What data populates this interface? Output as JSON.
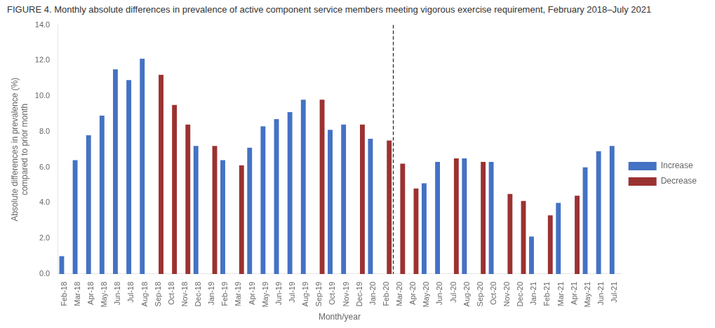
{
  "chart_data": {
    "type": "bar",
    "title": "FIGURE 4. Monthly absolute differences in prevalence of active component service members meeting vigorous exercise requirement, February 2018–July 2021",
    "xlabel": "Month/year",
    "ylabel": "Absolute differences in prevalence (%)\ncompared to prior month",
    "categories": [
      "Feb-18",
      "Mar-18",
      "Apr-18",
      "May-18",
      "Jun-18",
      "Jul-18",
      "Aug-18",
      "Sep-18",
      "Oct-18",
      "Nov-18",
      "Dec-18",
      "Jan-19",
      "Feb-19",
      "Mar-19",
      "Apr-19",
      "May-19",
      "Jun-19",
      "Jul-19",
      "Aug-19",
      "Sep-19",
      "Oct-19",
      "Nov-19",
      "Dec-19",
      "Jan-20",
      "Feb-20",
      "Mar-20",
      "Apr-20",
      "May-20",
      "Jun-20",
      "Jul-20",
      "Aug-20",
      "Sep-20",
      "Oct-20",
      "Nov-20",
      "Dec-20",
      "Jan-21",
      "Feb-21",
      "Mar-21",
      "Apr-21",
      "May-21",
      "Jun-21",
      "Jul-21"
    ],
    "series": [
      {
        "name": "Increase",
        "color": "#4472C4",
        "values": [
          1.0,
          6.4,
          7.8,
          8.9,
          11.5,
          10.9,
          12.1,
          0,
          0,
          0,
          7.2,
          0,
          6.4,
          0,
          7.1,
          8.3,
          8.7,
          9.1,
          9.8,
          0,
          8.1,
          8.4,
          0,
          7.6,
          0,
          0,
          0,
          5.1,
          6.3,
          0,
          6.5,
          0,
          6.3,
          0,
          0,
          2.1,
          0,
          4.0,
          0,
          6.0,
          6.9,
          7.2
        ]
      },
      {
        "name": "Decrease",
        "color": "#9B3232",
        "values": [
          0,
          0,
          0,
          0,
          0,
          0,
          0,
          11.2,
          9.5,
          8.4,
          0,
          7.2,
          0,
          6.1,
          0,
          0,
          0,
          0,
          0,
          9.8,
          0,
          0,
          8.4,
          0,
          7.5,
          6.2,
          4.8,
          0,
          0,
          6.5,
          0,
          6.3,
          0,
          4.5,
          4.1,
          0,
          3.3,
          0,
          4.4,
          0,
          0,
          0
        ]
      }
    ],
    "ylim": [
      0,
      14.0
    ],
    "yticks": [
      {
        "value": 0,
        "label": "0.0"
      },
      {
        "value": 2,
        "label": "2.0"
      },
      {
        "value": 4,
        "label": "4.0"
      },
      {
        "value": 6,
        "label": "6.0"
      },
      {
        "value": 8,
        "label": "8.0"
      },
      {
        "value": 10,
        "label": "10.0"
      },
      {
        "value": 12,
        "label": "12.0"
      },
      {
        "value": 14,
        "label": "14.0"
      }
    ],
    "annotations": [
      {
        "type": "vline",
        "between": [
          "Feb-20",
          "Mar-20"
        ],
        "line_style": "dashed",
        "color": "#000000"
      }
    ],
    "grid": false,
    "legend": "right"
  }
}
